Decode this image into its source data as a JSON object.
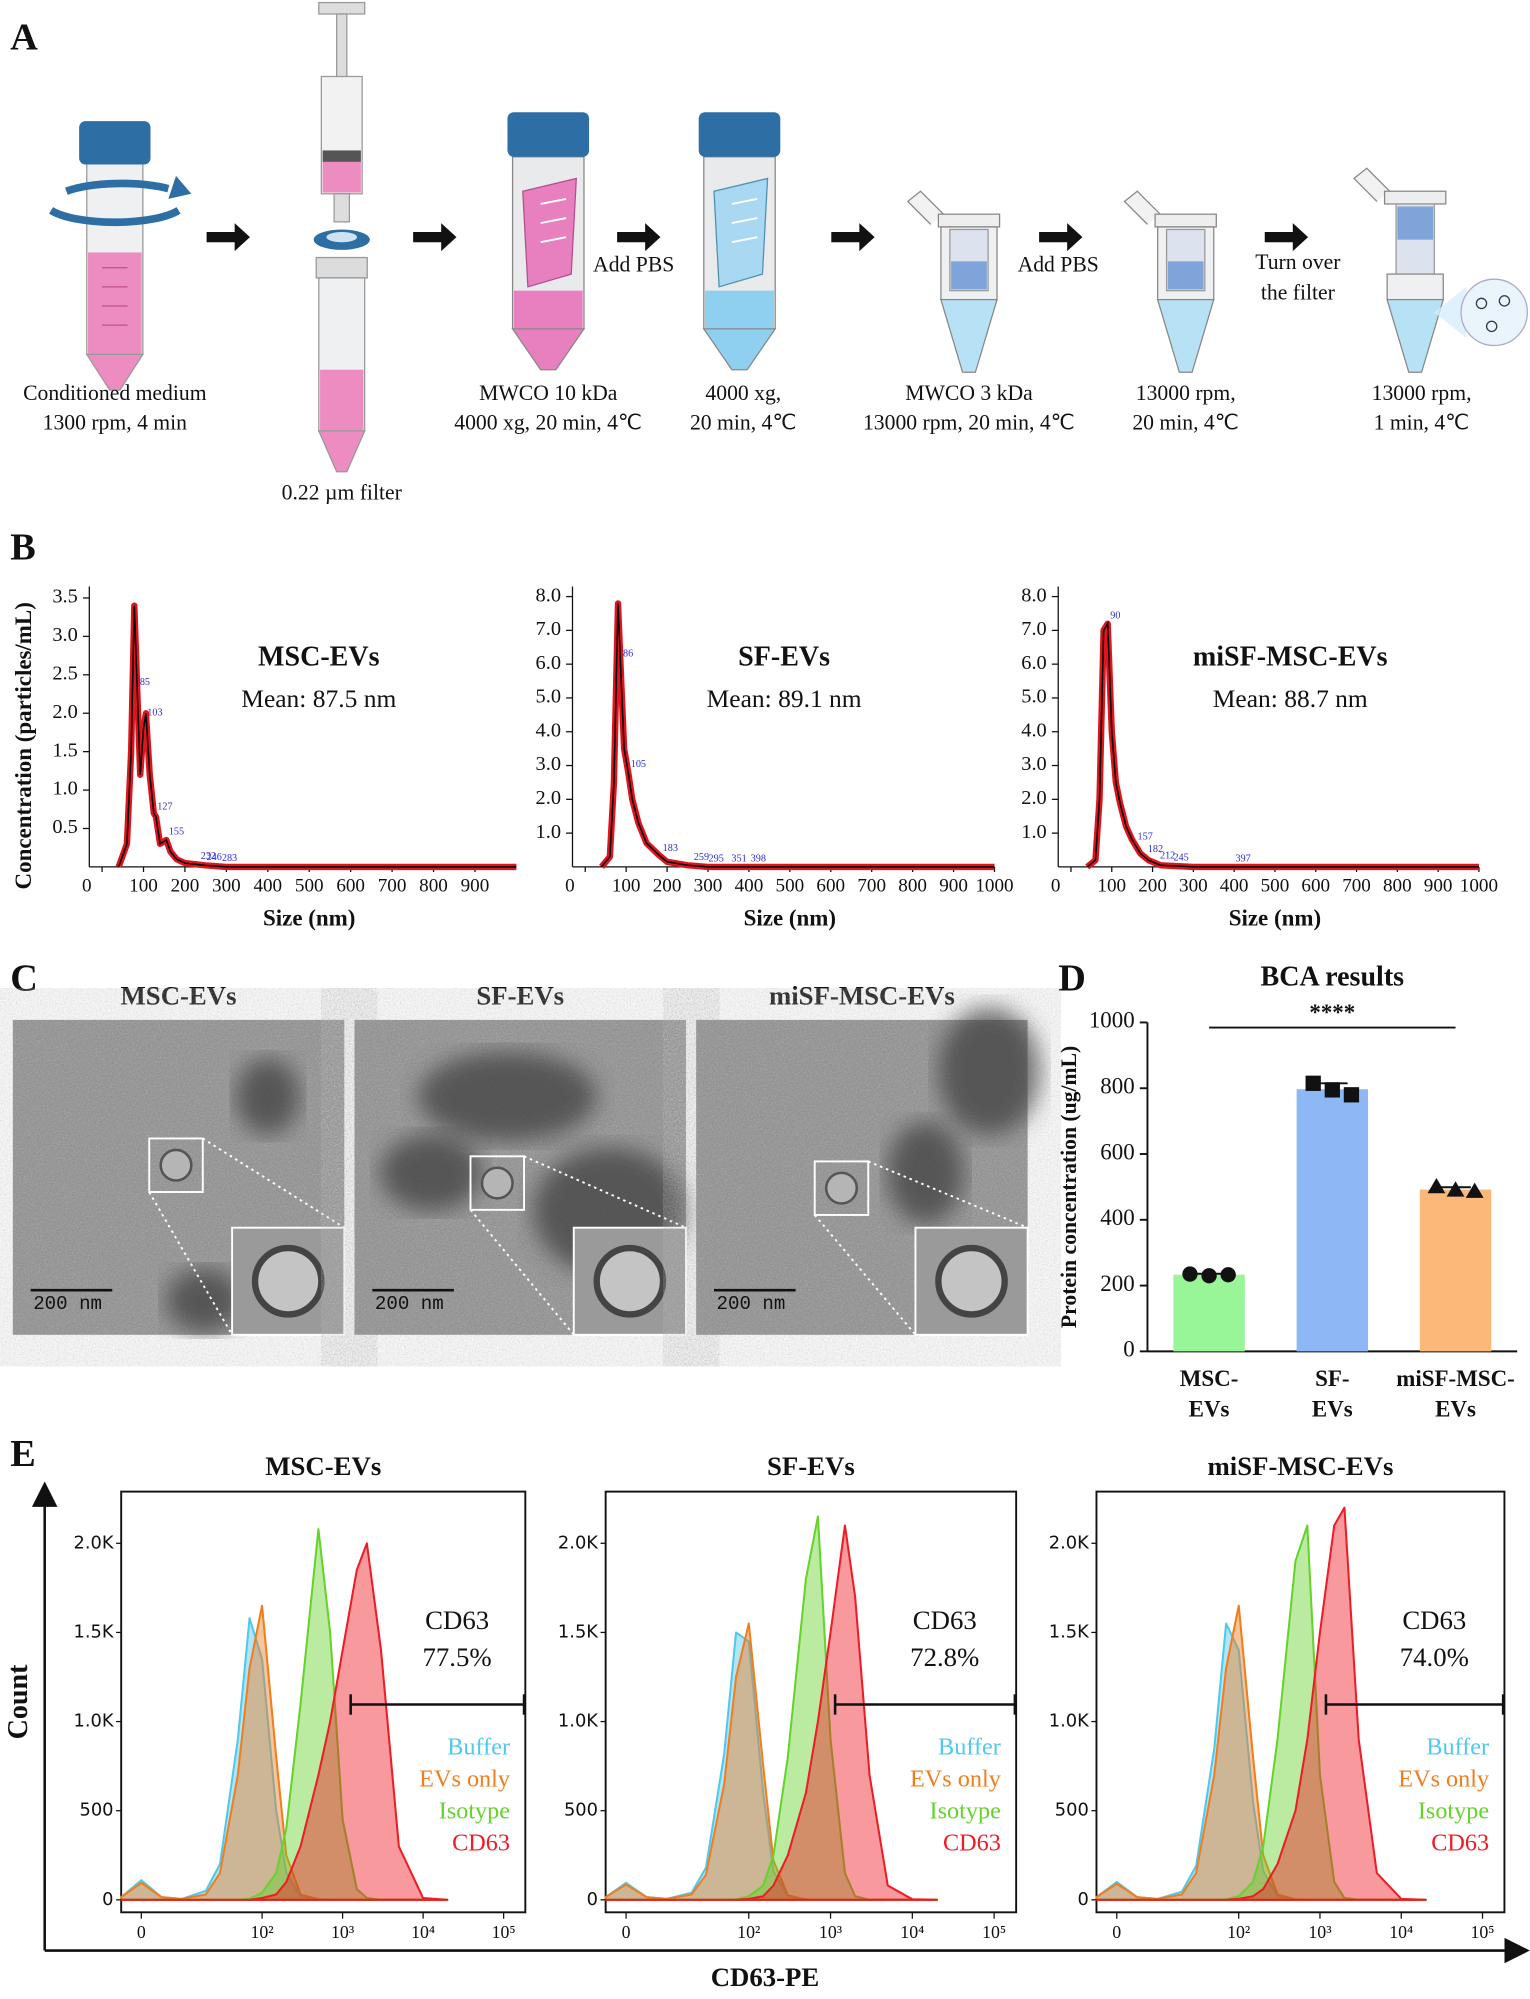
{
  "panel_a": {
    "label": "A",
    "steps": [
      [
        "Conditioned medium",
        "1300 rpm, 4 min"
      ],
      [
        "0.22 µm filter"
      ],
      [
        "MWCO 10 kDa",
        "4000 xg, 20 min, 4℃"
      ],
      [
        "4000 xg,",
        "20 min, 4℃"
      ],
      [
        "MWCO 3 kDa",
        "13000 rpm, 20 min, 4℃"
      ],
      [
        "13000 rpm,",
        "20 min, 4℃"
      ],
      [
        "13000 rpm,",
        "1 min, 4℃"
      ]
    ],
    "notes": [
      [
        "Add PBS"
      ],
      [
        "Add PBS"
      ],
      [
        "Turn over",
        "the filter"
      ]
    ]
  },
  "panel_b": {
    "label": "B",
    "y_label": "Concentration (particles/mL)"
  },
  "panel_c": {
    "label": "C",
    "images": [
      {
        "title": "MSC-EVs",
        "scale_bar": "200 nm"
      },
      {
        "title": "SF-EVs",
        "scale_bar": "200 nm"
      },
      {
        "title": "miSF-MSC-EVs",
        "scale_bar": "200 nm"
      }
    ]
  },
  "panel_d": {
    "label": "D"
  },
  "panel_e": {
    "label": "E",
    "y_label": "Count",
    "x_label": "CD63-PE"
  },
  "chart_data": [
    {
      "type": "line",
      "title": "MSC-EVs",
      "subtitle": "Mean: 87.5 nm",
      "x_label": "Size (nm)",
      "x": [
        40,
        60,
        70,
        78,
        85,
        92,
        100,
        106,
        115,
        125,
        130,
        140,
        155,
        165,
        180,
        200,
        250,
        300,
        1000
      ],
      "values": [
        0,
        0.3,
        1.5,
        3.4,
        2.3,
        1.2,
        1.8,
        2.0,
        1.2,
        0.7,
        0.65,
        0.3,
        0.35,
        0.2,
        0.1,
        0.05,
        0.02,
        0,
        0
      ],
      "color": "#000000",
      "band_color": "#e0141c",
      "peak_labels": [
        85,
        103,
        127,
        155,
        232,
        246,
        283
      ],
      "peak_label_color": "#2a2ae0",
      "xlim": [
        0,
        1000
      ],
      "ylim": [
        0,
        3.65
      ],
      "xticks": [
        0,
        100,
        200,
        300,
        400,
        500,
        600,
        700,
        800,
        900
      ],
      "yticks": [
        0.5,
        {
          "value": 1,
          "label": "1.0"
        },
        1.5,
        {
          "value": 2,
          "label": "2.0"
        },
        2.5,
        {
          "value": 3,
          "label": "3.0"
        },
        3.5
      ]
    },
    {
      "type": "line",
      "title": "SF-EVs",
      "subtitle": "Mean: 89.1 nm",
      "x_label": "Size (nm)",
      "x": [
        40,
        60,
        70,
        80,
        88,
        95,
        105,
        115,
        130,
        150,
        180,
        200,
        250,
        300,
        1000
      ],
      "values": [
        0,
        0.3,
        2.5,
        7.8,
        5.5,
        3.5,
        2.8,
        2.0,
        1.3,
        0.7,
        0.35,
        0.15,
        0.05,
        0,
        0
      ],
      "color": "#000000",
      "band_color": "#e0141c",
      "peak_labels": [
        86,
        105,
        183,
        259,
        295,
        351,
        398
      ],
      "peak_label_color": "#2a2ae0",
      "xlim": [
        0,
        1000
      ],
      "ylim": [
        0,
        8.3
      ],
      "xticks": [
        0,
        100,
        200,
        300,
        400,
        500,
        600,
        700,
        800,
        900,
        1000
      ],
      "yticks": [
        {
          "value": 1,
          "label": "1.0"
        },
        {
          "value": 2,
          "label": "2.0"
        },
        {
          "value": 3,
          "label": "3.0"
        },
        {
          "value": 4,
          "label": "4.0"
        },
        {
          "value": 5,
          "label": "5.0"
        },
        {
          "value": 6,
          "label": "6.0"
        },
        {
          "value": 7,
          "label": "7.0"
        },
        {
          "value": 8,
          "label": "8.0"
        }
      ]
    },
    {
      "type": "line",
      "title": "miSF-MSC-EVs",
      "subtitle": "Mean: 88.7 nm",
      "x_label": "Size (nm)",
      "x": [
        40,
        60,
        70,
        80,
        90,
        100,
        110,
        120,
        135,
        150,
        170,
        190,
        220,
        300,
        1000
      ],
      "values": [
        0,
        0.2,
        2.0,
        7.0,
        7.2,
        4.0,
        2.5,
        1.9,
        1.2,
        0.8,
        0.4,
        0.2,
        0.05,
        0,
        0
      ],
      "color": "#000000",
      "band_color": "#e0141c",
      "peak_labels": [
        90,
        157,
        182,
        212,
        245,
        397
      ],
      "peak_label_color": "#2a2ae0",
      "xlim": [
        0,
        1000
      ],
      "ylim": [
        0,
        8.3
      ],
      "xticks": [
        0,
        100,
        200,
        300,
        400,
        500,
        600,
        700,
        800,
        900,
        1000
      ],
      "yticks": [
        {
          "value": 1,
          "label": "1.0"
        },
        {
          "value": 2,
          "label": "2.0"
        },
        {
          "value": 3,
          "label": "3.0"
        },
        {
          "value": 4,
          "label": "4.0"
        },
        {
          "value": 5,
          "label": "5.0"
        },
        {
          "value": 6,
          "label": "6.0"
        },
        {
          "value": 7,
          "label": "7.0"
        },
        {
          "value": 8,
          "label": "8.0"
        }
      ]
    },
    {
      "type": "bar",
      "title": "BCA results",
      "y_label": "Protein concentration (ug/mL)",
      "categories": [
        [
          "MSC-",
          "EVs"
        ],
        [
          "SF-",
          "EVs"
        ],
        [
          "miSF-MSC-",
          "EVs"
        ]
      ],
      "values": [
        233,
        797,
        492
      ],
      "errors": [
        3,
        18,
        7
      ],
      "points": [
        [
          235,
          230,
          233
        ],
        [
          815,
          795,
          780
        ],
        [
          500,
          490,
          486
        ]
      ],
      "colors": [
        "#98f598",
        "#8db8f5",
        "#fcb878"
      ],
      "point_markers": [
        "circle",
        "square",
        "triangle"
      ],
      "significance": "****",
      "ylim": [
        0,
        1000
      ],
      "yticks": [
        0,
        200,
        400,
        600,
        800,
        1000
      ]
    },
    {
      "type": "area",
      "title": "MSC-EVs",
      "xscale": "biexponential",
      "x": [
        -5,
        0,
        5,
        10,
        20,
        30,
        50,
        70,
        100,
        150,
        200,
        300,
        500,
        700,
        1000,
        1500,
        2000,
        3000,
        5000,
        10000,
        20000
      ],
      "series": [
        {
          "name": "Buffer",
          "color": "#4fc8ef",
          "values": [
            15,
            110,
            15,
            5,
            50,
            200,
            900,
            1580,
            1350,
            500,
            150,
            20,
            0,
            0,
            0,
            0,
            0,
            0,
            0,
            0,
            0
          ]
        },
        {
          "name": "EVs only",
          "color": "#f07d1e",
          "values": [
            15,
            95,
            15,
            5,
            30,
            150,
            700,
            1300,
            1650,
            800,
            250,
            30,
            3,
            0,
            0,
            0,
            0,
            0,
            0,
            0,
            0
          ]
        },
        {
          "name": "Isotype",
          "color": "#66d22c",
          "values": [
            0,
            0,
            0,
            0,
            0,
            0,
            0,
            5,
            40,
            150,
            400,
            1100,
            2080,
            1500,
            450,
            60,
            10,
            0,
            0,
            0,
            0
          ]
        },
        {
          "name": "CD63",
          "color": "#ee1c25",
          "values": [
            0,
            0,
            0,
            0,
            0,
            0,
            0,
            0,
            10,
            30,
            100,
            300,
            700,
            1000,
            1400,
            1850,
            2000,
            1400,
            300,
            10,
            0
          ]
        }
      ],
      "gate_label": "CD63",
      "gate_value": 77.5,
      "gate_value_label": "77.5%",
      "xlim": [
        -5,
        186000
      ],
      "ylim": [
        -70,
        2290
      ],
      "xticks": [
        0,
        {
          "value": 100,
          "label": "10²"
        },
        {
          "value": 1000,
          "label": "10³"
        },
        {
          "value": 10000,
          "label": "10⁴"
        },
        {
          "value": 100000,
          "label": "10⁵"
        }
      ],
      "yticks": [
        0,
        500,
        {
          "value": 1000,
          "label": "1.0K"
        },
        {
          "value": 1500,
          "label": "1.5K"
        },
        {
          "value": 2000,
          "label": "2.0K"
        }
      ]
    },
    {
      "type": "area",
      "title": "SF-EVs",
      "xscale": "biexponential",
      "x": [
        -5,
        0,
        5,
        10,
        20,
        30,
        50,
        70,
        100,
        150,
        200,
        300,
        500,
        700,
        1000,
        1500,
        2000,
        3000,
        5000,
        10000,
        20000
      ],
      "series": [
        {
          "name": "Buffer",
          "color": "#4fc8ef",
          "values": [
            15,
            95,
            15,
            5,
            40,
            180,
            820,
            1500,
            1450,
            600,
            160,
            20,
            0,
            0,
            0,
            0,
            0,
            0,
            0,
            0,
            0
          ]
        },
        {
          "name": "EVs only",
          "color": "#f07d1e",
          "values": [
            15,
            85,
            15,
            5,
            30,
            140,
            650,
            1250,
            1550,
            750,
            220,
            25,
            2,
            0,
            0,
            0,
            0,
            0,
            0,
            0,
            0
          ]
        },
        {
          "name": "Isotype",
          "color": "#66d22c",
          "values": [
            0,
            0,
            0,
            0,
            0,
            0,
            0,
            3,
            20,
            80,
            250,
            800,
            1800,
            2150,
            900,
            150,
            20,
            0,
            0,
            0,
            0
          ]
        },
        {
          "name": "CD63",
          "color": "#ee1c25",
          "values": [
            0,
            0,
            0,
            0,
            0,
            0,
            0,
            0,
            5,
            20,
            80,
            250,
            600,
            1000,
            1500,
            2100,
            1700,
            700,
            80,
            3,
            0
          ]
        }
      ],
      "gate_label": "CD63",
      "gate_value": 72.8,
      "gate_value_label": "72.8%",
      "xlim": [
        -5,
        186000
      ],
      "ylim": [
        -70,
        2290
      ],
      "xticks": [
        0,
        {
          "value": 100,
          "label": "10²"
        },
        {
          "value": 1000,
          "label": "10³"
        },
        {
          "value": 10000,
          "label": "10⁴"
        },
        {
          "value": 100000,
          "label": "10⁵"
        }
      ],
      "yticks": [
        0,
        500,
        {
          "value": 1000,
          "label": "1.0K"
        },
        {
          "value": 1500,
          "label": "1.5K"
        },
        {
          "value": 2000,
          "label": "2.0K"
        }
      ]
    },
    {
      "type": "area",
      "title": "miSF-MSC-EVs",
      "xscale": "biexponential",
      "x": [
        -5,
        0,
        5,
        10,
        20,
        30,
        50,
        70,
        100,
        150,
        200,
        300,
        500,
        700,
        1000,
        1500,
        2000,
        3000,
        5000,
        10000,
        20000
      ],
      "series": [
        {
          "name": "Buffer",
          "color": "#4fc8ef",
          "values": [
            15,
            100,
            15,
            5,
            45,
            190,
            850,
            1550,
            1400,
            550,
            160,
            20,
            0,
            0,
            0,
            0,
            0,
            0,
            0,
            0,
            0
          ]
        },
        {
          "name": "EVs only",
          "color": "#f07d1e",
          "values": [
            15,
            90,
            15,
            5,
            30,
            150,
            700,
            1300,
            1650,
            800,
            250,
            30,
            3,
            0,
            0,
            0,
            0,
            0,
            0,
            0,
            0
          ]
        },
        {
          "name": "Isotype",
          "color": "#66d22c",
          "values": [
            0,
            0,
            0,
            0,
            0,
            0,
            0,
            3,
            20,
            100,
            300,
            900,
            1900,
            2100,
            700,
            100,
            10,
            0,
            0,
            0,
            0
          ]
        },
        {
          "name": "CD63",
          "color": "#ee1c25",
          "values": [
            0,
            0,
            0,
            0,
            0,
            0,
            0,
            0,
            5,
            20,
            60,
            200,
            500,
            900,
            1500,
            2100,
            2200,
            900,
            150,
            5,
            0
          ]
        }
      ],
      "gate_label": "CD63",
      "gate_value": 74.0,
      "gate_value_label": "74.0%",
      "xlim": [
        -5,
        186000
      ],
      "ylim": [
        -70,
        2290
      ],
      "xticks": [
        0,
        {
          "value": 100,
          "label": "10²"
        },
        {
          "value": 1000,
          "label": "10³"
        },
        {
          "value": 10000,
          "label": "10⁴"
        },
        {
          "value": 100000,
          "label": "10⁵"
        }
      ],
      "yticks": [
        0,
        500,
        {
          "value": 1000,
          "label": "1.0K"
        },
        {
          "value": 1500,
          "label": "1.5K"
        },
        {
          "value": 2000,
          "label": "2.0K"
        }
      ]
    }
  ]
}
